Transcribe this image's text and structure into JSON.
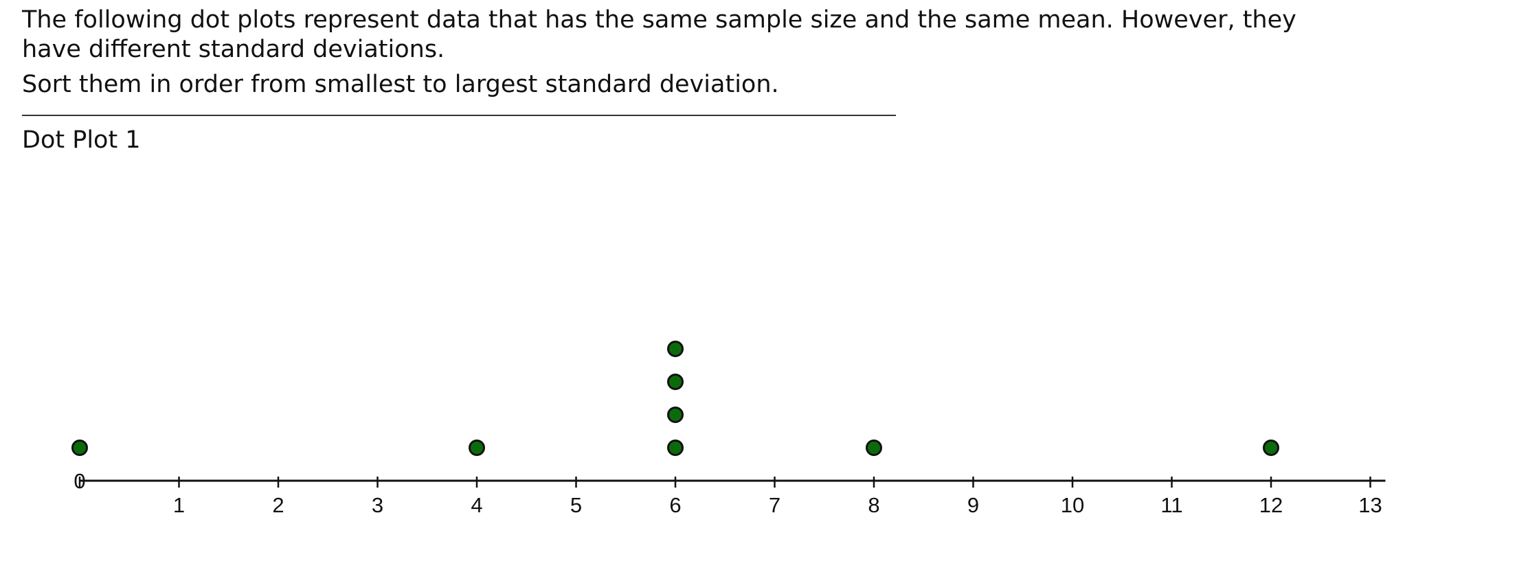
{
  "question": {
    "intro": "The following dot plots represent data that has the same sample size and the same mean. However, they have different standard deviations.",
    "instruction": "Sort them in order from smallest to largest standard deviation.",
    "plot_title": "Dot Plot 1"
  },
  "chart_data": {
    "type": "scatter",
    "title": "",
    "xlabel": "",
    "ylabel": "",
    "xlim": [
      0,
      13
    ],
    "x_ticks": [
      0,
      1,
      2,
      3,
      4,
      5,
      6,
      7,
      8,
      9,
      10,
      11,
      12,
      13
    ],
    "x_tick_labels": [
      "0",
      "1",
      "2",
      "3",
      "4",
      "5",
      "6",
      "7",
      "8",
      "9",
      "10",
      "11",
      "12",
      "13"
    ],
    "grid": false,
    "legend": "none",
    "dot_color": "#0b6b0b",
    "dot_outline_color": "#111111",
    "series": [
      {
        "points": [
          {
            "x": 0,
            "count": 1
          },
          {
            "x": 4,
            "count": 1
          },
          {
            "x": 6,
            "count": 4
          },
          {
            "x": 8,
            "count": 1
          },
          {
            "x": 12,
            "count": 1
          }
        ]
      }
    ]
  }
}
